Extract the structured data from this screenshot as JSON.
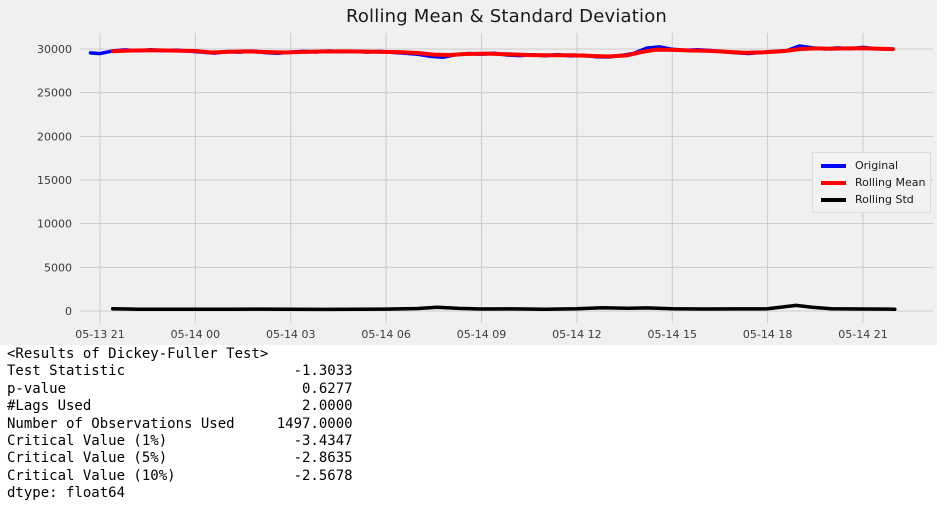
{
  "figure": {
    "background": "#f0f0f0"
  },
  "chart_data": {
    "type": "line",
    "title": "Rolling Mean & Standard Deviation",
    "xlabel": "",
    "ylabel": "",
    "grid": "on",
    "grid_color": "#cbcbcb",
    "legend_position": "center right",
    "ylim": [
      -1400,
      31800
    ],
    "xlim_hours": [
      -0.63,
      26.2
    ],
    "y_ticks": [
      {
        "label": "30000",
        "value": 30000
      },
      {
        "label": "25000",
        "value": 25000
      },
      {
        "label": "20000",
        "value": 20000
      },
      {
        "label": "15000",
        "value": 15000
      },
      {
        "label": "10000",
        "value": 10000
      },
      {
        "label": "5000",
        "value": 5000
      },
      {
        "label": "0",
        "value": 0
      }
    ],
    "x_ticks": [
      {
        "label": "05-13 21",
        "hour": 0
      },
      {
        "label": "05-14 00",
        "hour": 3
      },
      {
        "label": "05-14 03",
        "hour": 6
      },
      {
        "label": "05-14 06",
        "hour": 9
      },
      {
        "label": "05-14 09",
        "hour": 12
      },
      {
        "label": "05-14 12",
        "hour": 15
      },
      {
        "label": "05-14 15",
        "hour": 18
      },
      {
        "label": "05-14 18",
        "hour": 21
      },
      {
        "label": "05-14 21",
        "hour": 24
      }
    ],
    "legend": [
      {
        "label": "Original",
        "color": "#0000ff"
      },
      {
        "label": "Rolling Mean",
        "color": "#ff0000"
      },
      {
        "label": "Rolling Std",
        "color": "#000000"
      }
    ],
    "series": [
      {
        "name": "Original",
        "color": "#0000ff",
        "width": 3.5,
        "points": [
          [
            -0.3,
            29550
          ],
          [
            0,
            29470
          ],
          [
            0.4,
            29780
          ],
          [
            0.8,
            29900
          ],
          [
            1.2,
            29800
          ],
          [
            1.6,
            29920
          ],
          [
            2.0,
            29790
          ],
          [
            2.4,
            29870
          ],
          [
            2.8,
            29760
          ],
          [
            3.2,
            29650
          ],
          [
            3.6,
            29530
          ],
          [
            4.0,
            29700
          ],
          [
            4.4,
            29650
          ],
          [
            4.8,
            29760
          ],
          [
            5.2,
            29590
          ],
          [
            5.6,
            29520
          ],
          [
            6.0,
            29640
          ],
          [
            6.4,
            29720
          ],
          [
            6.8,
            29660
          ],
          [
            7.2,
            29770
          ],
          [
            7.6,
            29680
          ],
          [
            8.0,
            29750
          ],
          [
            8.4,
            29650
          ],
          [
            8.8,
            29720
          ],
          [
            9.2,
            29610
          ],
          [
            9.6,
            29510
          ],
          [
            10.0,
            29390
          ],
          [
            10.4,
            29150
          ],
          [
            10.8,
            29060
          ],
          [
            11.2,
            29350
          ],
          [
            11.6,
            29490
          ],
          [
            12.0,
            29400
          ],
          [
            12.4,
            29520
          ],
          [
            12.8,
            29310
          ],
          [
            13.2,
            29250
          ],
          [
            13.6,
            29340
          ],
          [
            14.0,
            29230
          ],
          [
            14.4,
            29360
          ],
          [
            14.8,
            29210
          ],
          [
            15.2,
            29290
          ],
          [
            15.6,
            29110
          ],
          [
            16.0,
            29080
          ],
          [
            16.4,
            29260
          ],
          [
            16.8,
            29510
          ],
          [
            17.2,
            30100
          ],
          [
            17.6,
            30240
          ],
          [
            18.0,
            29960
          ],
          [
            18.4,
            29850
          ],
          [
            18.8,
            29920
          ],
          [
            19.2,
            29830
          ],
          [
            19.6,
            29700
          ],
          [
            20.0,
            29560
          ],
          [
            20.4,
            29490
          ],
          [
            20.8,
            29610
          ],
          [
            21.2,
            29710
          ],
          [
            21.6,
            29820
          ],
          [
            22.0,
            30340
          ],
          [
            22.4,
            30150
          ],
          [
            22.8,
            30000
          ],
          [
            23.2,
            30130
          ],
          [
            23.6,
            30050
          ],
          [
            24.0,
            30180
          ],
          [
            24.4,
            30020
          ],
          [
            24.9,
            29980
          ]
        ]
      },
      {
        "name": "Rolling Mean",
        "color": "#ff0000",
        "width": 4,
        "points": [
          [
            0.4,
            29750
          ],
          [
            1.0,
            29830
          ],
          [
            1.8,
            29850
          ],
          [
            2.5,
            29810
          ],
          [
            3.0,
            29770
          ],
          [
            3.5,
            29600
          ],
          [
            4.1,
            29680
          ],
          [
            4.7,
            29720
          ],
          [
            5.3,
            29650
          ],
          [
            5.8,
            29600
          ],
          [
            6.3,
            29660
          ],
          [
            7.0,
            29710
          ],
          [
            7.8,
            29720
          ],
          [
            8.6,
            29690
          ],
          [
            9.4,
            29640
          ],
          [
            10.0,
            29540
          ],
          [
            10.5,
            29360
          ],
          [
            11.0,
            29310
          ],
          [
            11.5,
            29430
          ],
          [
            12.2,
            29470
          ],
          [
            12.9,
            29380
          ],
          [
            13.6,
            29300
          ],
          [
            14.2,
            29280
          ],
          [
            14.9,
            29290
          ],
          [
            15.4,
            29210
          ],
          [
            16.0,
            29140
          ],
          [
            16.6,
            29290
          ],
          [
            17.1,
            29700
          ],
          [
            17.5,
            29930
          ],
          [
            18.0,
            29900
          ],
          [
            18.6,
            29830
          ],
          [
            19.2,
            29780
          ],
          [
            19.8,
            29660
          ],
          [
            20.3,
            29560
          ],
          [
            20.9,
            29620
          ],
          [
            21.5,
            29760
          ],
          [
            22.0,
            29990
          ],
          [
            22.5,
            30070
          ],
          [
            23.0,
            30040
          ],
          [
            23.5,
            30070
          ],
          [
            24.0,
            30090
          ],
          [
            24.5,
            30040
          ],
          [
            24.94,
            29990
          ]
        ]
      },
      {
        "name": "Rolling Std",
        "color": "#000000",
        "width": 3.5,
        "points": [
          [
            0.4,
            260
          ],
          [
            1.2,
            210
          ],
          [
            2.0,
            190
          ],
          [
            3.0,
            200
          ],
          [
            4.0,
            190
          ],
          [
            5.0,
            220
          ],
          [
            6.0,
            200
          ],
          [
            7.0,
            185
          ],
          [
            8.0,
            195
          ],
          [
            9.0,
            215
          ],
          [
            10.0,
            290
          ],
          [
            10.6,
            430
          ],
          [
            11.3,
            300
          ],
          [
            12.0,
            230
          ],
          [
            13.0,
            240
          ],
          [
            14.0,
            205
          ],
          [
            15.0,
            260
          ],
          [
            15.8,
            380
          ],
          [
            16.6,
            310
          ],
          [
            17.2,
            360
          ],
          [
            18.0,
            255
          ],
          [
            19.0,
            225
          ],
          [
            20.0,
            235
          ],
          [
            21.0,
            255
          ],
          [
            21.9,
            640
          ],
          [
            22.4,
            420
          ],
          [
            23.0,
            260
          ],
          [
            24.0,
            225
          ],
          [
            25.0,
            210
          ]
        ]
      }
    ]
  },
  "console": {
    "lines": [
      "<Results of Dickey-Fuller Test>",
      "Test Statistic                    -1.3033",
      "p-value                            0.6277",
      "#Lags Used                         2.0000",
      "Number of Observations Used     1497.0000",
      "Critical Value (1%)               -3.4347",
      "Critical Value (5%)               -2.8635",
      "Critical Value (10%)              -2.5678",
      "dtype: float64"
    ]
  }
}
